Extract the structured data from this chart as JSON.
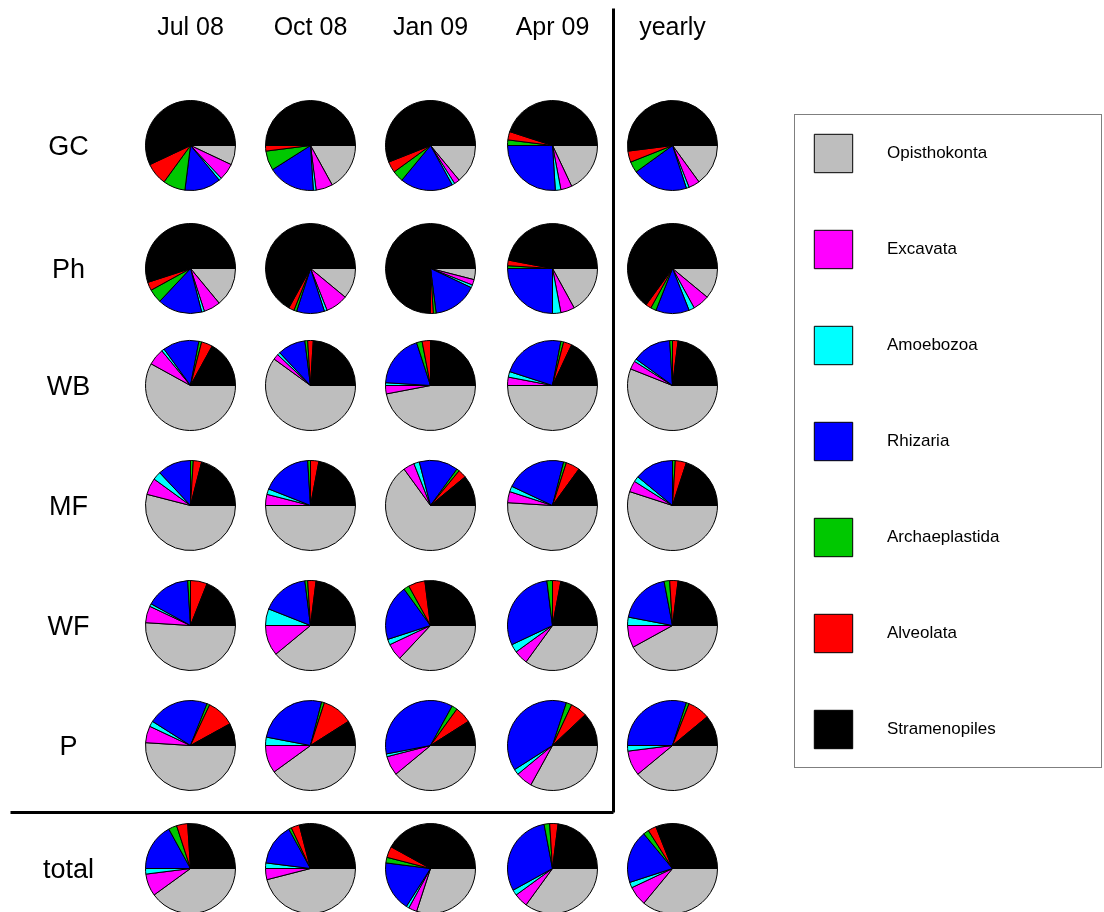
{
  "chart_data": [
    {
      "type": "pie",
      "title": "Jul 08",
      "ylabel": "GC",
      "legend": "right",
      "categories": [
        "Opisthokonta",
        "Excavata",
        "Amoebozoa",
        "Rhizaria",
        "Archaeplastida",
        "Alveolata",
        "Stramenopiles"
      ],
      "values": [
        7,
        6,
        1,
        13,
        8,
        8,
        57
      ],
      "colors": [
        "#bebebe",
        "#ff00ff",
        "#00ffff",
        "#0000ff",
        "#00c800",
        "#ff0000",
        "#000000"
      ]
    },
    {
      "type": "pie",
      "title": "Oct 08",
      "categories": [
        null,
        null,
        null,
        null,
        null,
        null,
        null
      ],
      "values": [
        17,
        6,
        1,
        17,
        7,
        2,
        50
      ],
      "colors": [
        "#bebebe",
        "#ff00ff",
        "#00ffff",
        "#0000ff",
        "#00c800",
        "#ff0000",
        "#000000"
      ]
    },
    {
      "type": "pie",
      "title": "Jan 09",
      "categories": [
        null,
        null,
        null,
        null,
        null,
        null,
        null
      ],
      "values": [
        14,
        2,
        1,
        19,
        4,
        4,
        56
      ],
      "colors": [
        "#bebebe",
        "#ff00ff",
        "#00ffff",
        "#0000ff",
        "#00c800",
        "#ff0000",
        "#000000"
      ]
    },
    {
      "type": "pie",
      "title": "Apr 09",
      "categories": [
        null,
        null,
        null,
        null,
        null,
        null,
        null
      ],
      "values": [
        18,
        4,
        2,
        26,
        2,
        3,
        45
      ],
      "colors": [
        "#bebebe",
        "#ff00ff",
        "#00ffff",
        "#0000ff",
        "#00c800",
        "#ff0000",
        "#000000"
      ]
    },
    {
      "type": "pie",
      "title": "yearly",
      "categories": [
        null,
        null,
        null,
        null,
        null,
        null,
        null
      ],
      "values": [
        15,
        4,
        1,
        20,
        4,
        4,
        52
      ],
      "colors": [
        "#bebebe",
        "#ff00ff",
        "#00ffff",
        "#0000ff",
        "#00c800",
        "#ff0000",
        "#000000"
      ]
    },
    {
      "type": "pie",
      "ylabel": "Ph",
      "categories": [
        null,
        null,
        null,
        null,
        null,
        null,
        null
      ],
      "values": [
        14,
        6,
        1,
        16,
        5,
        3,
        55
      ],
      "colors": [
        "#bebebe",
        "#ff00ff",
        "#00ffff",
        "#0000ff",
        "#00c800",
        "#ff0000",
        "#000000"
      ]
    },
    {
      "type": "pie",
      "categories": [
        null,
        null,
        null,
        null,
        null,
        null,
        null
      ],
      "values": [
        11,
        8,
        1,
        10,
        1,
        2,
        67
      ],
      "colors": [
        "#bebebe",
        "#ff00ff",
        "#00ffff",
        "#0000ff",
        "#00c800",
        "#ff0000",
        "#000000"
      ]
    },
    {
      "type": "pie",
      "categories": [
        null,
        null,
        null,
        null,
        null,
        null,
        null
      ],
      "values": [
        4,
        2,
        1,
        16,
        1,
        1,
        75
      ],
      "colors": [
        "#bebebe",
        "#ff00ff",
        "#00ffff",
        "#0000ff",
        "#00c800",
        "#ff0000",
        "#000000"
      ]
    },
    {
      "type": "pie",
      "categories": [
        null,
        null,
        null,
        null,
        null,
        null,
        null
      ],
      "values": [
        17,
        5,
        3,
        25,
        1,
        2,
        47
      ],
      "colors": [
        "#bebebe",
        "#ff00ff",
        "#00ffff",
        "#0000ff",
        "#00c800",
        "#ff0000",
        "#000000"
      ]
    },
    {
      "type": "pie",
      "categories": [
        null,
        null,
        null,
        null,
        null,
        null,
        null
      ],
      "values": [
        11,
        6,
        2,
        12,
        2,
        2,
        65
      ],
      "colors": [
        "#bebebe",
        "#ff00ff",
        "#00ffff",
        "#0000ff",
        "#00c800",
        "#ff0000",
        "#000000"
      ]
    },
    {
      "type": "pie",
      "ylabel": "WB",
      "categories": [
        null,
        null,
        null,
        null,
        null,
        null,
        null
      ],
      "values": [
        58,
        6,
        1,
        13,
        1,
        4,
        17
      ],
      "colors": [
        "#bebebe",
        "#ff00ff",
        "#00ffff",
        "#0000ff",
        "#00c800",
        "#ff0000",
        "#000000"
      ]
    },
    {
      "type": "pie",
      "categories": [
        null,
        null,
        null,
        null,
        null,
        null,
        null
      ],
      "values": [
        60,
        2,
        1,
        10,
        1,
        2,
        24
      ],
      "colors": [
        "#bebebe",
        "#ff00ff",
        "#00ffff",
        "#0000ff",
        "#00c800",
        "#ff0000",
        "#000000"
      ]
    },
    {
      "type": "pie",
      "categories": [
        null,
        null,
        null,
        null,
        null,
        null,
        null
      ],
      "values": [
        47,
        3,
        1,
        19,
        2,
        3,
        25
      ],
      "colors": [
        "#bebebe",
        "#ff00ff",
        "#00ffff",
        "#0000ff",
        "#00c800",
        "#ff0000",
        "#000000"
      ]
    },
    {
      "type": "pie",
      "categories": [
        null,
        null,
        null,
        null,
        null,
        null,
        null
      ],
      "values": [
        50,
        3,
        2,
        23,
        1,
        3,
        18
      ],
      "colors": [
        "#bebebe",
        "#ff00ff",
        "#00ffff",
        "#0000ff",
        "#00c800",
        "#ff0000",
        "#000000"
      ]
    },
    {
      "type": "pie",
      "categories": [
        null,
        null,
        null,
        null,
        null,
        null,
        null
      ],
      "values": [
        56,
        3,
        1,
        14,
        1,
        2,
        23
      ],
      "colors": [
        "#bebebe",
        "#ff00ff",
        "#00ffff",
        "#0000ff",
        "#00c800",
        "#ff0000",
        "#000000"
      ]
    },
    {
      "type": "pie",
      "ylabel": "MF",
      "categories": [
        null,
        null,
        null,
        null,
        null,
        null,
        null
      ],
      "values": [
        54,
        6,
        3,
        12,
        1,
        3,
        21
      ],
      "colors": [
        "#bebebe",
        "#ff00ff",
        "#00ffff",
        "#0000ff",
        "#00c800",
        "#ff0000",
        "#000000"
      ]
    },
    {
      "type": "pie",
      "categories": [
        null,
        null,
        null,
        null,
        null,
        null,
        null
      ],
      "values": [
        50,
        4,
        2,
        18,
        1,
        3,
        22
      ],
      "colors": [
        "#bebebe",
        "#ff00ff",
        "#00ffff",
        "#0000ff",
        "#00c800",
        "#ff0000",
        "#000000"
      ]
    },
    {
      "type": "pie",
      "categories": [
        null,
        null,
        null,
        null,
        null,
        null,
        null
      ],
      "values": [
        65,
        4,
        2,
        14,
        1,
        3,
        11
      ],
      "colors": [
        "#bebebe",
        "#ff00ff",
        "#00ffff",
        "#0000ff",
        "#00c800",
        "#ff0000",
        "#000000"
      ]
    },
    {
      "type": "pie",
      "categories": [
        null,
        null,
        null,
        null,
        null,
        null,
        null
      ],
      "values": [
        51,
        4,
        2,
        22,
        1,
        5,
        15
      ],
      "colors": [
        "#bebebe",
        "#ff00ff",
        "#00ffff",
        "#0000ff",
        "#00c800",
        "#ff0000",
        "#000000"
      ]
    },
    {
      "type": "pie",
      "categories": [
        null,
        null,
        null,
        null,
        null,
        null,
        null
      ],
      "values": [
        55,
        4,
        2,
        14,
        1,
        4,
        20
      ],
      "colors": [
        "#bebebe",
        "#ff00ff",
        "#00ffff",
        "#0000ff",
        "#00c800",
        "#ff0000",
        "#000000"
      ]
    },
    {
      "type": "pie",
      "ylabel": "WF",
      "categories": [
        null,
        null,
        null,
        null,
        null,
        null,
        null
      ],
      "values": [
        51,
        6,
        1,
        16,
        1,
        6,
        19
      ],
      "colors": [
        "#bebebe",
        "#ff00ff",
        "#00ffff",
        "#0000ff",
        "#00c800",
        "#ff0000",
        "#000000"
      ]
    },
    {
      "type": "pie",
      "categories": [
        null,
        null,
        null,
        null,
        null,
        null,
        null
      ],
      "values": [
        39,
        11,
        6,
        17,
        1,
        3,
        23
      ],
      "colors": [
        "#bebebe",
        "#ff00ff",
        "#00ffff",
        "#0000ff",
        "#00c800",
        "#ff0000",
        "#000000"
      ]
    },
    {
      "type": "pie",
      "categories": [
        null,
        null,
        null,
        null,
        null,
        null,
        null
      ],
      "values": [
        37,
        6,
        2,
        20,
        2,
        6,
        27
      ],
      "colors": [
        "#bebebe",
        "#ff00ff",
        "#00ffff",
        "#0000ff",
        "#00c800",
        "#ff0000",
        "#000000"
      ]
    },
    {
      "type": "pie",
      "categories": [
        null,
        null,
        null,
        null,
        null,
        null,
        null
      ],
      "values": [
        35,
        5,
        3,
        30,
        2,
        3,
        22
      ],
      "colors": [
        "#bebebe",
        "#ff00ff",
        "#00ffff",
        "#0000ff",
        "#00c800",
        "#ff0000",
        "#000000"
      ]
    },
    {
      "type": "pie",
      "categories": [
        null,
        null,
        null,
        null,
        null,
        null,
        null
      ],
      "values": [
        42,
        8,
        3,
        19,
        2,
        3,
        23
      ],
      "colors": [
        "#bebebe",
        "#ff00ff",
        "#00ffff",
        "#0000ff",
        "#00c800",
        "#ff0000",
        "#000000"
      ]
    },
    {
      "type": "pie",
      "ylabel": "P",
      "categories": [
        null,
        null,
        null,
        null,
        null,
        null,
        null
      ],
      "values": [
        51,
        6,
        2,
        22,
        1,
        10,
        8
      ],
      "colors": [
        "#bebebe",
        "#ff00ff",
        "#00ffff",
        "#0000ff",
        "#00c800",
        "#ff0000",
        "#000000"
      ]
    },
    {
      "type": "pie",
      "categories": [
        null,
        null,
        null,
        null,
        null,
        null,
        null
      ],
      "values": [
        40,
        10,
        3,
        26,
        1,
        11,
        9
      ],
      "colors": [
        "#bebebe",
        "#ff00ff",
        "#00ffff",
        "#0000ff",
        "#00c800",
        "#ff0000",
        "#000000"
      ]
    },
    {
      "type": "pie",
      "categories": [
        null,
        null,
        null,
        null,
        null,
        null,
        null
      ],
      "values": [
        39,
        7,
        1,
        36,
        2,
        6,
        9
      ],
      "colors": [
        "#bebebe",
        "#ff00ff",
        "#00ffff",
        "#0000ff",
        "#00c800",
        "#ff0000",
        "#000000"
      ]
    },
    {
      "type": "pie",
      "categories": [
        null,
        null,
        null,
        null,
        null,
        null,
        null
      ],
      "values": [
        33,
        6,
        2,
        39,
        2,
        6,
        12
      ],
      "colors": [
        "#bebebe",
        "#ff00ff",
        "#00ffff",
        "#0000ff",
        "#00c800",
        "#ff0000",
        "#000000"
      ]
    },
    {
      "type": "pie",
      "categories": [
        null,
        null,
        null,
        null,
        null,
        null,
        null
      ],
      "values": [
        39,
        9,
        2,
        30,
        1,
        8,
        11
      ],
      "colors": [
        "#bebebe",
        "#ff00ff",
        "#00ffff",
        "#0000ff",
        "#00c800",
        "#ff0000",
        "#000000"
      ]
    },
    {
      "type": "pie",
      "ylabel": "total",
      "categories": [
        null,
        null,
        null,
        null,
        null,
        null,
        null
      ],
      "values": [
        40,
        8,
        2,
        17,
        3,
        4,
        26
      ],
      "colors": [
        "#bebebe",
        "#ff00ff",
        "#00ffff",
        "#0000ff",
        "#00c800",
        "#ff0000",
        "#000000"
      ]
    },
    {
      "type": "pie",
      "categories": [
        null,
        null,
        null,
        null,
        null,
        null,
        null
      ],
      "values": [
        46,
        4,
        2,
        15,
        1,
        3,
        29
      ],
      "colors": [
        "#bebebe",
        "#ff00ff",
        "#00ffff",
        "#0000ff",
        "#00c800",
        "#ff0000",
        "#000000"
      ]
    },
    {
      "type": "pie",
      "categories": [
        null,
        null,
        null,
        null,
        null,
        null,
        null
      ],
      "values": [
        30,
        3,
        1,
        18,
        2,
        4,
        42
      ],
      "colors": [
        "#bebebe",
        "#ff00ff",
        "#00ffff",
        "#0000ff",
        "#00c800",
        "#ff0000",
        "#000000"
      ]
    },
    {
      "type": "pie",
      "categories": [
        null,
        null,
        null,
        null,
        null,
        null,
        null
      ],
      "values": [
        35,
        5,
        2,
        30,
        2,
        3,
        23
      ],
      "colors": [
        "#bebebe",
        "#ff00ff",
        "#00ffff",
        "#0000ff",
        "#00c800",
        "#ff0000",
        "#000000"
      ]
    },
    {
      "type": "pie",
      "categories": [
        null,
        null,
        null,
        null,
        null,
        null,
        null
      ],
      "values": [
        36,
        7,
        2,
        19,
        2,
        3,
        31
      ],
      "colors": [
        "#bebebe",
        "#ff00ff",
        "#00ffff",
        "#0000ff",
        "#00c800",
        "#ff0000",
        "#000000"
      ]
    }
  ]
}
